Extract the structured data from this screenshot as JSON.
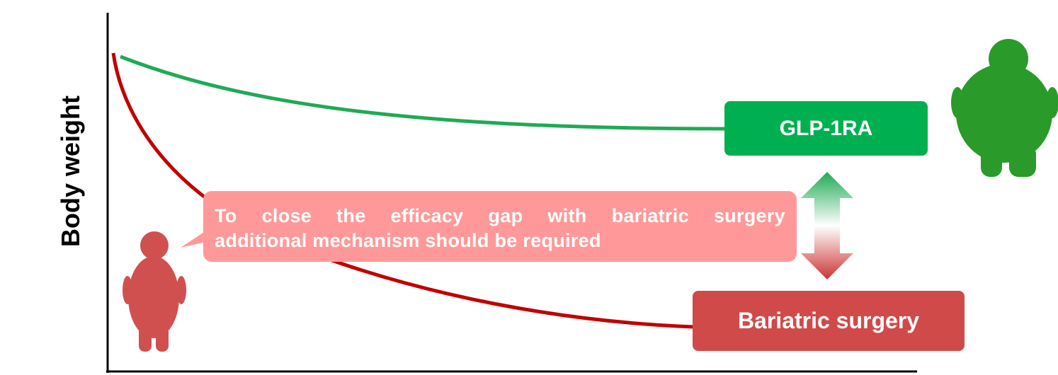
{
  "axis_label": "Body weight",
  "labels": {
    "glp1ra": "GLP-1RA",
    "bariatric": "Bariatric surgery"
  },
  "callout": {
    "lines": [
      "To close the efficacy gap with bariatric surgery",
      "additional mechanism should be required"
    ]
  }
}
